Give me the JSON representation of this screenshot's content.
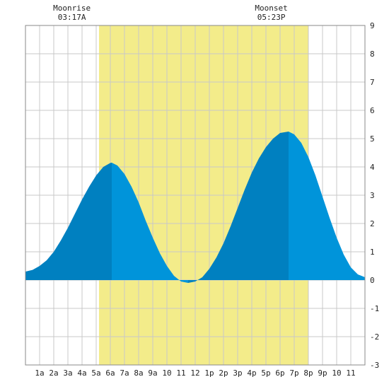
{
  "chart_data": {
    "type": "area",
    "title": "",
    "xlabel": "",
    "ylabel": "",
    "x_unit": "hour",
    "xlim": [
      0,
      24
    ],
    "ylim": [
      -3,
      9
    ],
    "grid": true,
    "y_ticks": [
      -3,
      -2,
      -1,
      0,
      1,
      2,
      3,
      4,
      5,
      6,
      7,
      8,
      9
    ],
    "x_tick_labels": [
      "1a",
      "2a",
      "3a",
      "4a",
      "5a",
      "6a",
      "7a",
      "8a",
      "9a",
      "10",
      "11",
      "12",
      "1p",
      "2p",
      "3p",
      "4p",
      "5p",
      "6p",
      "7p",
      "8p",
      "9p",
      "10",
      "11"
    ],
    "daylight": {
      "start_hour": 5.2,
      "end_hour": 20.0,
      "color": "#f3ec8a"
    },
    "extremes": [
      {
        "hour": 6.1,
        "height": 4.15,
        "type": "high"
      },
      {
        "hour": 11.5,
        "height": -0.1,
        "type": "low"
      },
      {
        "hour": 18.6,
        "height": 5.25,
        "type": "high"
      }
    ],
    "tide_curve": {
      "x": [
        0,
        0.5,
        1,
        1.5,
        2,
        2.5,
        3,
        3.5,
        4,
        4.5,
        5,
        5.5,
        6,
        6.1,
        6.5,
        7,
        7.5,
        8,
        8.5,
        9,
        9.5,
        10,
        10.5,
        11,
        11.5,
        12,
        12.5,
        13,
        13.5,
        14,
        14.5,
        15,
        15.5,
        16,
        16.5,
        17,
        17.5,
        18,
        18.6,
        19,
        19.5,
        20,
        20.5,
        21,
        21.5,
        22,
        22.5,
        23,
        23.5,
        24
      ],
      "y": [
        0.3,
        0.36,
        0.5,
        0.7,
        1.0,
        1.4,
        1.85,
        2.35,
        2.85,
        3.3,
        3.7,
        4.0,
        4.14,
        4.15,
        4.05,
        3.75,
        3.3,
        2.75,
        2.1,
        1.5,
        0.95,
        0.5,
        0.15,
        -0.05,
        -0.1,
        -0.05,
        0.1,
        0.4,
        0.8,
        1.3,
        1.9,
        2.55,
        3.2,
        3.8,
        4.3,
        4.7,
        5.0,
        5.2,
        5.25,
        5.15,
        4.85,
        4.35,
        3.7,
        2.95,
        2.2,
        1.5,
        0.9,
        0.45,
        0.2,
        0.1
      ]
    },
    "colors": {
      "before_high": "#0080c0",
      "after_high": "#0094da"
    },
    "moon": [
      {
        "label": "Moonrise",
        "time": "03:17A",
        "hour": 3.28
      },
      {
        "label": "Moonset",
        "time": "05:23P",
        "hour": 17.38
      }
    ]
  }
}
